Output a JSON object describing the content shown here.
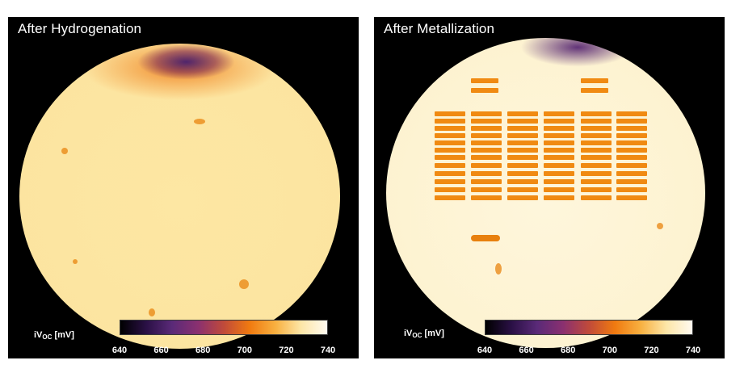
{
  "panels": [
    {
      "title": "After Hydrogenation",
      "colorbar": {
        "label_main": "iV",
        "label_sub": "OC",
        "label_unit": " [mV]",
        "ticks": [
          "640",
          "660",
          "680",
          "700",
          "720",
          "740"
        ]
      }
    },
    {
      "title": "After Metallization",
      "colorbar": {
        "label_main": "iV",
        "label_sub": "OC",
        "label_unit": " [mV]",
        "ticks": [
          "640",
          "660",
          "680",
          "700",
          "720",
          "740"
        ]
      }
    }
  ],
  "colormap": [
    "#000000",
    "#2a1045",
    "#5a2a78",
    "#8a3070",
    "#c04a3a",
    "#f07a10",
    "#f8b040",
    "#fde6a8",
    "#fffaf0"
  ],
  "colors": {
    "panel_background": "#000000",
    "wafer_hydrogenated": "#fce7a6",
    "wafer_metallized": "#fdf4d6",
    "metal_grid": "#f08a12"
  }
}
